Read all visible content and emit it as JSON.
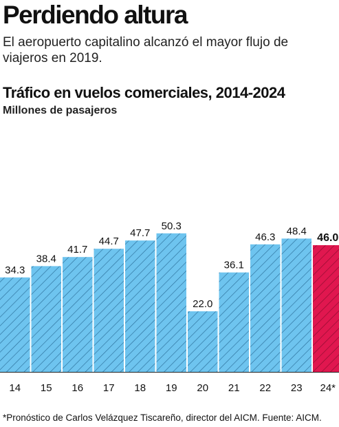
{
  "header": {
    "title": "Perdiendo altura",
    "subtitle": "El aeropuerto capitalino alcanzó el mayor flujo de viajeros en 2019."
  },
  "colors": {
    "bar": "#6ec4ef",
    "bar_stripe": "#2b6f9a",
    "highlight": "#e0174f",
    "highlight_stripe": "#8c0b2e",
    "baseline": "#222222"
  },
  "chart_data": {
    "type": "bar",
    "title": "Tráfico en vuelos comerciales, 2014-2024",
    "subtitle": "Millones de pasajeros",
    "categories": [
      "14",
      "15",
      "16",
      "17",
      "18",
      "19",
      "20",
      "21",
      "22",
      "23",
      "24*"
    ],
    "values": [
      34.3,
      38.4,
      41.7,
      44.7,
      47.7,
      50.3,
      22.0,
      36.1,
      46.3,
      48.4,
      46.0
    ],
    "value_labels": [
      "34.3",
      "38.4",
      "41.7",
      "44.7",
      "47.7",
      "50.3",
      "22.0",
      "36.1",
      "46.3",
      "48.4",
      "46.0"
    ],
    "highlight_index": 10,
    "ylim": [
      0,
      55
    ],
    "grid": false
  },
  "footnote": "*Pronóstico de Carlos Velázquez Tiscareño, director del AICM. Fuente: AICM."
}
